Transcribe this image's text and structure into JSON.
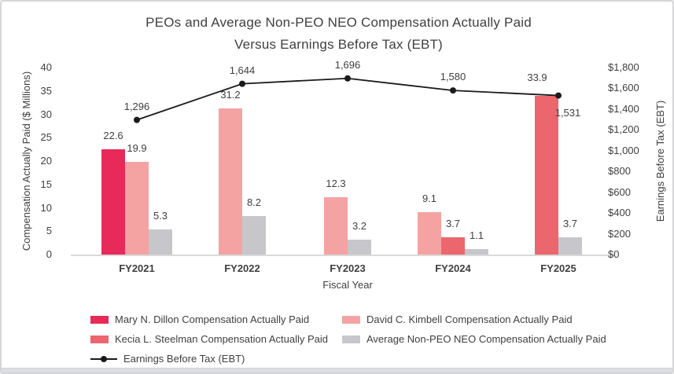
{
  "colors": {
    "mary": "#E72A5A",
    "david": "#F4A3A2",
    "kecia": "#EC666D",
    "avg_gray": "#C7C7CB",
    "ebt_line": "#1A1A1A",
    "text": "#3F3F3F",
    "axis_line": "#DADADA"
  },
  "title": {
    "line1": "PEOs and Average Non-PEO NEO Compensation Actually Paid",
    "line2": "Versus Earnings Before Tax (EBT)"
  },
  "chart_data": {
    "type": "combo",
    "categories": [
      "FY2021",
      "FY2022",
      "FY2023",
      "FY2024",
      "FY2025"
    ],
    "bar_series": [
      {
        "name": "Mary N. Dillon Compensation Actually Paid",
        "color_key": "mary",
        "values": [
          22.6,
          null,
          null,
          null,
          null
        ]
      },
      {
        "name": "David C. Kimbell Compensation Actually Paid",
        "color_key": "david",
        "values": [
          19.9,
          31.2,
          12.3,
          9.1,
          null
        ]
      },
      {
        "name": "Kecia L. Steelman Compensation Actually Paid",
        "color_key": "kecia",
        "values": [
          null,
          null,
          null,
          3.7,
          33.9
        ],
        "label_offsets": {
          "4": [
            -12,
            -6
          ]
        }
      },
      {
        "name": "Average Non-PEO NEO Compensation Actually Paid",
        "color_key": "avg_gray",
        "values": [
          5.3,
          8.2,
          3.2,
          1.1,
          3.7
        ]
      }
    ],
    "line_series": {
      "name": "Earnings Before Tax (EBT)",
      "color_key": "ebt_line",
      "values": [
        1296,
        1644,
        1696,
        1580,
        1531
      ],
      "labels": [
        "1,296",
        "1,644",
        "1,696",
        "1,580",
        "1,531"
      ],
      "label_offsets": {
        "4": [
          12,
          39
        ]
      }
    },
    "axes": {
      "left": {
        "title": "Compensation Actually Paid ($ Millions)",
        "min": 0,
        "max": 40,
        "step": 5
      },
      "right": {
        "title": "Earnings Before Tax (EBT)",
        "min": 0,
        "max": 1800,
        "step": 200,
        "prefix": "$"
      },
      "x": {
        "title": "Fiscal Year"
      }
    },
    "grid": false,
    "legend_position": "bottom"
  },
  "legend": {
    "items": [
      {
        "label": "Mary N. Dillon Compensation Actually Paid",
        "swatch": "bar",
        "color_key": "mary"
      },
      {
        "label": "David C. Kimbell Compensation Actually Paid",
        "swatch": "bar",
        "color_key": "david"
      },
      {
        "label": "Kecia L. Steelman Compensation Actually Paid",
        "swatch": "bar",
        "color_key": "kecia"
      },
      {
        "label": "Average Non-PEO NEO Compensation Actually Paid",
        "swatch": "bar",
        "color_key": "avg_gray"
      },
      {
        "label": "Earnings Before Tax (EBT)",
        "swatch": "line",
        "color_key": "ebt_line"
      }
    ]
  }
}
